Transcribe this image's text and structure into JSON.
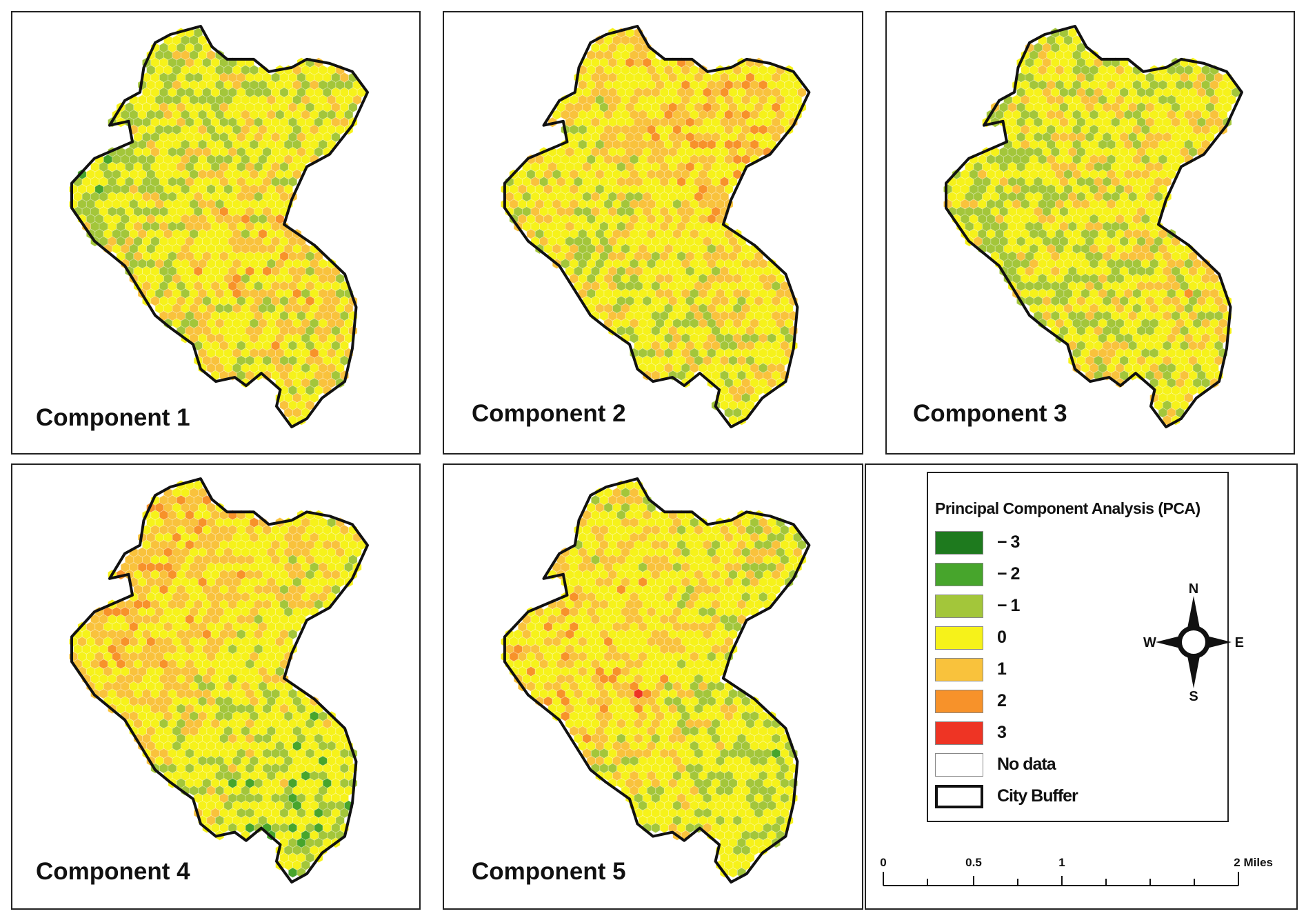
{
  "panels": [
    {
      "id": "p1",
      "label": "Component 1",
      "palette": [
        "#1e7a1e",
        "#47a52c",
        "#a3c63a",
        "#f6f21a",
        "#f9c23c",
        "#f7922a",
        "#ee3424"
      ],
      "weights": [
        0.06,
        0.14,
        0.22,
        0.28,
        0.18,
        0.1,
        0.02
      ]
    },
    {
      "id": "p2",
      "label": "Component 2",
      "palette": [
        "#1e7a1e",
        "#47a52c",
        "#a3c63a",
        "#f6f21a",
        "#f9c23c",
        "#f7922a",
        "#ee3424"
      ],
      "weights": [
        0.04,
        0.1,
        0.18,
        0.3,
        0.22,
        0.14,
        0.02
      ]
    },
    {
      "id": "p3",
      "label": "Component 3",
      "palette": [
        "#1e7a1e",
        "#47a52c",
        "#a3c63a",
        "#f6f21a",
        "#f9c23c",
        "#f7922a",
        "#ee3424"
      ],
      "weights": [
        0.02,
        0.1,
        0.3,
        0.26,
        0.2,
        0.08,
        0.04
      ]
    },
    {
      "id": "p4",
      "label": "Component 4",
      "palette": [
        "#1e7a1e",
        "#47a52c",
        "#a3c63a",
        "#f6f21a",
        "#f9c23c",
        "#f7922a",
        "#ee3424"
      ],
      "weights": [
        0.03,
        0.1,
        0.18,
        0.32,
        0.24,
        0.1,
        0.03
      ]
    },
    {
      "id": "p5",
      "label": "Component 5",
      "palette": [
        "#1e7a1e",
        "#47a52c",
        "#a3c63a",
        "#f6f21a",
        "#f9c23c",
        "#f7922a",
        "#ee3424"
      ],
      "weights": [
        0.04,
        0.12,
        0.22,
        0.32,
        0.18,
        0.08,
        0.02
      ]
    }
  ],
  "legend": {
    "title": "Principal Component Analysis (PCA)",
    "items": [
      {
        "label": "− 3",
        "color": "#1e7a1e"
      },
      {
        "label": "− 2",
        "color": "#47a52c"
      },
      {
        "label": "− 1",
        "color": "#a3c63a"
      },
      {
        "label": "0",
        "color": "#f6f21a"
      },
      {
        "label": "1",
        "color": "#f9c23c"
      },
      {
        "label": "2",
        "color": "#f7922a"
      },
      {
        "label": "3",
        "color": "#ee3424"
      },
      {
        "label": "No data",
        "color": "#ffffff"
      },
      {
        "label": "City Buffer",
        "color": "#ffffff"
      }
    ]
  },
  "compass": {
    "n": "N",
    "s": "S",
    "e": "E",
    "w": "W"
  },
  "scale": {
    "ticks": [
      "0",
      "0.5",
      "1",
      "2 Miles"
    ]
  }
}
